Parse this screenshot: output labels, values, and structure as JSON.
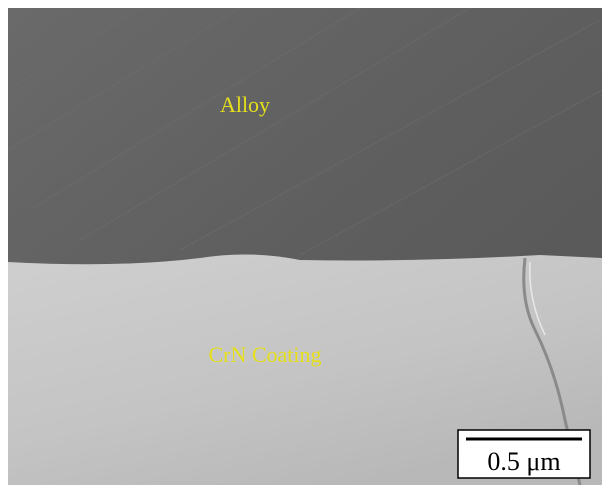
{
  "labels": {
    "top_region": "Alloy",
    "bottom_region": "CrN Coating"
  },
  "scale_bar": {
    "label": "0.5 μm"
  }
}
